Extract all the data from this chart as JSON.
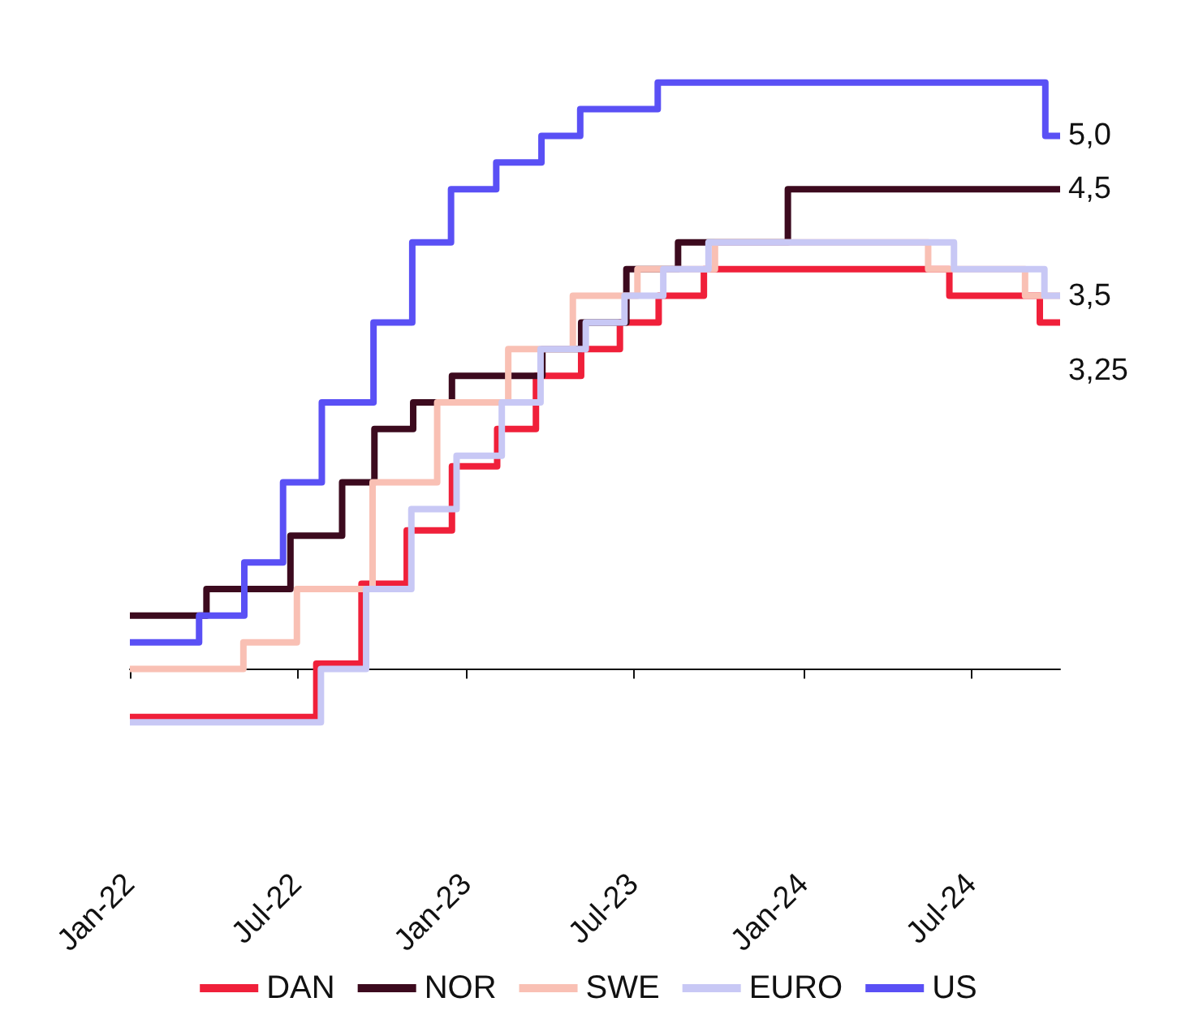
{
  "chart_data": {
    "type": "step",
    "xlim": [
      "2022-01-01",
      "2024-10-05"
    ],
    "xticks": [
      {
        "value": "2022-01-01",
        "label": "Jan-22"
      },
      {
        "value": "2022-07-01",
        "label": "Jul-22"
      },
      {
        "value": "2023-01-01",
        "label": "Jan-23"
      },
      {
        "value": "2023-07-01",
        "label": "Jul-23"
      },
      {
        "value": "2024-01-01",
        "label": "Jan-24"
      },
      {
        "value": "2024-07-01",
        "label": "Jul-24"
      }
    ],
    "tick_labels": "x",
    "grid": false,
    "legend": "bottom",
    "marker": "none",
    "line_style": "solid",
    "series": [
      {
        "name": "DAN",
        "color": "#f0203a",
        "x": [
          "2022-01-01",
          "2022-07-22",
          "2022-09-09",
          "2022-10-28",
          "2022-12-16",
          "2023-02-03",
          "2023-03-17",
          "2023-05-05",
          "2023-06-16",
          "2023-07-28",
          "2023-09-15",
          "2024-06-07",
          "2024-09-13",
          "2024-10-05"
        ],
        "values": [
          -0.45,
          0.05,
          0.8,
          1.3,
          1.9,
          2.25,
          2.75,
          3.0,
          3.25,
          3.5,
          3.75,
          3.5,
          3.25,
          3.25
        ],
        "value_labels": [
          null,
          null,
          null,
          null,
          null,
          null,
          null,
          null,
          null,
          null,
          null,
          null,
          null,
          "3,25"
        ]
      },
      {
        "name": "NOR",
        "color": "#3c0a1e",
        "x": [
          "2022-01-01",
          "2022-03-25",
          "2022-06-24",
          "2022-08-19",
          "2022-09-23",
          "2022-11-04",
          "2022-12-16",
          "2023-03-24",
          "2023-05-05",
          "2023-06-23",
          "2023-08-18",
          "2023-12-15",
          "2024-10-05"
        ],
        "values": [
          0.5,
          0.75,
          1.25,
          1.75,
          2.25,
          2.5,
          2.75,
          3.0,
          3.25,
          3.75,
          4.0,
          4.5,
          4.5
        ],
        "value_labels": [
          null,
          null,
          null,
          null,
          null,
          null,
          null,
          null,
          null,
          null,
          null,
          null,
          "4,5"
        ]
      },
      {
        "name": "SWE",
        "color": "#f9c0b4",
        "x": [
          "2022-01-01",
          "2022-05-04",
          "2022-07-01",
          "2022-09-21",
          "2022-11-30",
          "2023-02-15",
          "2023-04-26",
          "2023-07-05",
          "2023-09-27",
          "2024-05-15",
          "2024-08-28",
          "2024-10-05"
        ],
        "values": [
          0,
          0.25,
          0.75,
          1.75,
          2.5,
          3.0,
          3.5,
          3.75,
          4.0,
          3.75,
          3.5,
          3.5
        ]
      },
      {
        "name": "EURO",
        "color": "#c8c8f5",
        "x": [
          "2022-01-01",
          "2022-07-27",
          "2022-09-14",
          "2022-11-02",
          "2022-12-21",
          "2023-02-08",
          "2023-03-22",
          "2023-05-10",
          "2023-06-21",
          "2023-08-02",
          "2023-09-20",
          "2024-06-12",
          "2024-09-18",
          "2024-10-05"
        ],
        "values": [
          -0.5,
          0,
          0.75,
          1.5,
          2.0,
          2.5,
          3.0,
          3.25,
          3.5,
          3.75,
          4.0,
          3.75,
          3.5,
          3.5
        ],
        "value_labels": [
          null,
          null,
          null,
          null,
          null,
          null,
          null,
          null,
          null,
          null,
          null,
          null,
          null,
          "3,5"
        ]
      },
      {
        "name": "US",
        "color": "#5a50f5",
        "x": [
          "2022-01-01",
          "2022-03-17",
          "2022-05-05",
          "2022-06-16",
          "2022-07-28",
          "2022-09-22",
          "2022-11-03",
          "2022-12-15",
          "2023-02-02",
          "2023-03-23",
          "2023-05-04",
          "2023-07-27",
          "2024-09-19",
          "2024-10-05"
        ],
        "values": [
          0.25,
          0.5,
          1.0,
          1.75,
          2.5,
          3.25,
          4.0,
          4.5,
          4.75,
          5.0,
          5.25,
          5.5,
          5.0,
          5.0
        ],
        "value_labels": [
          null,
          null,
          null,
          null,
          null,
          null,
          null,
          null,
          null,
          null,
          null,
          null,
          null,
          "5,0"
        ]
      }
    ]
  }
}
